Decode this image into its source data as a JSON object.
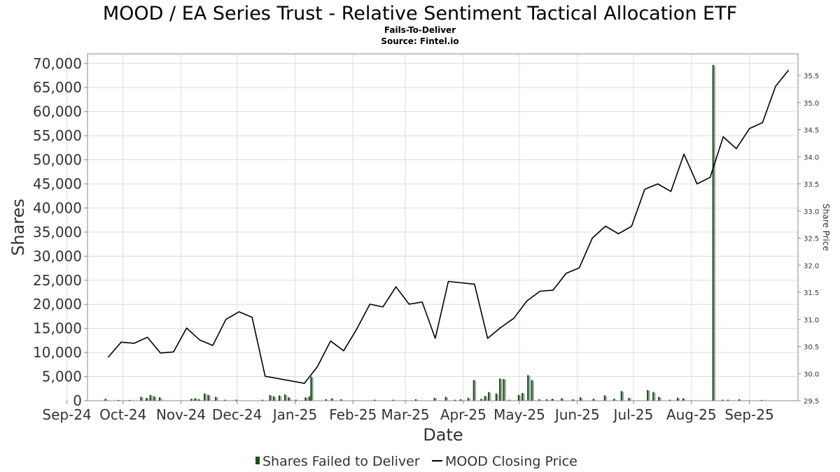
{
  "chart_data": {
    "type": "bar",
    "title": "MOOD / EA Series Trust - Relative Sentiment Tactical Allocation ETF",
    "subtitle": "Fails-To-Deliver",
    "source": "Source: Fintel.io",
    "xlabel": "Date",
    "ylabel": "Shares",
    "y2label": "Share Price",
    "ylim": [
      0,
      72000
    ],
    "y2lim": [
      29.5,
      35.9
    ],
    "grid": true,
    "legend_position": "bottom-center",
    "x_range": [
      "2024-09-12",
      "2025-09-27"
    ],
    "x_ticks": [
      {
        "date": "2024-09-01",
        "label": "Sep-24"
      },
      {
        "date": "2024-10-01",
        "label": "Oct-24"
      },
      {
        "date": "2024-11-01",
        "label": "Nov-24"
      },
      {
        "date": "2024-12-01",
        "label": "Dec-24"
      },
      {
        "date": "2025-01-01",
        "label": "Jan-25"
      },
      {
        "date": "2025-02-01",
        "label": "Feb-25"
      },
      {
        "date": "2025-03-01",
        "label": "Mar-25"
      },
      {
        "date": "2025-04-01",
        "label": "Apr-25"
      },
      {
        "date": "2025-05-01",
        "label": "May-25"
      },
      {
        "date": "2025-06-01",
        "label": "Jun-25"
      },
      {
        "date": "2025-07-01",
        "label": "Jul-25"
      },
      {
        "date": "2025-08-01",
        "label": "Aug-25"
      },
      {
        "date": "2025-09-01",
        "label": "Sep-25"
      }
    ],
    "y_ticks": [
      {
        "value": 0,
        "label": "0"
      },
      {
        "value": 5000,
        "label": "5,000"
      },
      {
        "value": 10000,
        "label": "10,000"
      },
      {
        "value": 15000,
        "label": "15,000"
      },
      {
        "value": 20000,
        "label": "20,000"
      },
      {
        "value": 25000,
        "label": "25,000"
      },
      {
        "value": 30000,
        "label": "30,000"
      },
      {
        "value": 35000,
        "label": "35,000"
      },
      {
        "value": 40000,
        "label": "40,000"
      },
      {
        "value": 45000,
        "label": "45,000"
      },
      {
        "value": 50000,
        "label": "50,000"
      },
      {
        "value": 55000,
        "label": "55,000"
      },
      {
        "value": 60000,
        "label": "60,000"
      },
      {
        "value": 65000,
        "label": "65,000"
      },
      {
        "value": 70000,
        "label": "70,000"
      }
    ],
    "y2_ticks": [
      {
        "value": 29.5,
        "label": "29.5"
      },
      {
        "value": 30.0,
        "label": "30.0"
      },
      {
        "value": 30.5,
        "label": "30.5"
      },
      {
        "value": 31.0,
        "label": "31.0"
      },
      {
        "value": 31.5,
        "label": "31.5"
      },
      {
        "value": 32.0,
        "label": "32.0"
      },
      {
        "value": 32.5,
        "label": "32.5"
      },
      {
        "value": 33.0,
        "label": "33.0"
      },
      {
        "value": 33.5,
        "label": "33.5"
      },
      {
        "value": 34.0,
        "label": "34.0"
      },
      {
        "value": 34.5,
        "label": "34.5"
      },
      {
        "value": 35.0,
        "label": "35.0"
      },
      {
        "value": 35.5,
        "label": "35.5"
      }
    ],
    "series": [
      {
        "name": "Shares Failed to Deliver",
        "type": "bar",
        "color": "#1b4d1b",
        "values": [
          {
            "date": "2024-09-22",
            "value": 400
          },
          {
            "date": "2024-09-29",
            "value": 150
          },
          {
            "date": "2024-10-05",
            "value": 150
          },
          {
            "date": "2024-10-11",
            "value": 800
          },
          {
            "date": "2024-10-14",
            "value": 600
          },
          {
            "date": "2024-10-16",
            "value": 1200
          },
          {
            "date": "2024-10-18",
            "value": 900
          },
          {
            "date": "2024-10-21",
            "value": 700
          },
          {
            "date": "2024-11-07",
            "value": 400
          },
          {
            "date": "2024-11-09",
            "value": 500
          },
          {
            "date": "2024-11-11",
            "value": 300
          },
          {
            "date": "2024-11-14",
            "value": 1500
          },
          {
            "date": "2024-11-16",
            "value": 1200
          },
          {
            "date": "2024-11-20",
            "value": 800
          },
          {
            "date": "2024-11-25",
            "value": 200
          },
          {
            "date": "2024-12-01",
            "value": 200
          },
          {
            "date": "2024-12-15",
            "value": 200
          },
          {
            "date": "2024-12-19",
            "value": 1200
          },
          {
            "date": "2024-12-21",
            "value": 900
          },
          {
            "date": "2024-12-24",
            "value": 1100
          },
          {
            "date": "2024-12-27",
            "value": 1300
          },
          {
            "date": "2024-12-29",
            "value": 700
          },
          {
            "date": "2025-01-02",
            "value": 200
          },
          {
            "date": "2025-01-07",
            "value": 700
          },
          {
            "date": "2025-01-09",
            "value": 900
          },
          {
            "date": "2025-01-10",
            "value": 5000
          },
          {
            "date": "2025-01-18",
            "value": 300
          },
          {
            "date": "2025-01-21",
            "value": 500
          },
          {
            "date": "2025-01-26",
            "value": 300
          },
          {
            "date": "2025-02-13",
            "value": 200
          },
          {
            "date": "2025-02-23",
            "value": 200
          },
          {
            "date": "2025-03-07",
            "value": 300
          },
          {
            "date": "2025-03-17",
            "value": 600
          },
          {
            "date": "2025-03-23",
            "value": 800
          },
          {
            "date": "2025-03-28",
            "value": 200
          },
          {
            "date": "2025-03-31",
            "value": 300
          },
          {
            "date": "2025-04-04",
            "value": 600
          },
          {
            "date": "2025-04-07",
            "value": 4300
          },
          {
            "date": "2025-04-11",
            "value": 400
          },
          {
            "date": "2025-04-13",
            "value": 1000
          },
          {
            "date": "2025-04-15",
            "value": 1800
          },
          {
            "date": "2025-04-19",
            "value": 1500
          },
          {
            "date": "2025-04-21",
            "value": 4600
          },
          {
            "date": "2025-04-23",
            "value": 4500
          },
          {
            "date": "2025-04-26",
            "value": 200
          },
          {
            "date": "2025-05-01",
            "value": 1200
          },
          {
            "date": "2025-05-03",
            "value": 1600
          },
          {
            "date": "2025-05-06",
            "value": 5300
          },
          {
            "date": "2025-05-08",
            "value": 4300
          },
          {
            "date": "2025-05-12",
            "value": 300
          },
          {
            "date": "2025-05-16",
            "value": 300
          },
          {
            "date": "2025-05-19",
            "value": 400
          },
          {
            "date": "2025-05-24",
            "value": 500
          },
          {
            "date": "2025-05-30",
            "value": 300
          },
          {
            "date": "2025-06-03",
            "value": 700
          },
          {
            "date": "2025-06-10",
            "value": 400
          },
          {
            "date": "2025-06-16",
            "value": 1100
          },
          {
            "date": "2025-06-21",
            "value": 400
          },
          {
            "date": "2025-06-25",
            "value": 2000
          },
          {
            "date": "2025-06-29",
            "value": 600
          },
          {
            "date": "2025-07-09",
            "value": 2200
          },
          {
            "date": "2025-07-12",
            "value": 1800
          },
          {
            "date": "2025-07-15",
            "value": 800
          },
          {
            "date": "2025-07-21",
            "value": 200
          },
          {
            "date": "2025-07-25",
            "value": 600
          },
          {
            "date": "2025-07-28",
            "value": 500
          },
          {
            "date": "2025-08-13",
            "value": 69700
          },
          {
            "date": "2025-08-18",
            "value": 200
          },
          {
            "date": "2025-08-21",
            "value": 200
          },
          {
            "date": "2025-08-27",
            "value": 300
          },
          {
            "date": "2025-09-08",
            "value": 150
          }
        ]
      },
      {
        "name": "MOOD Closing Price",
        "type": "line",
        "color": "#000000",
        "values": [
          {
            "date": "2024-09-23",
            "value": 30.3
          },
          {
            "date": "2024-09-30",
            "value": 30.58
          },
          {
            "date": "2024-10-07",
            "value": 30.56
          },
          {
            "date": "2024-10-14",
            "value": 30.67
          },
          {
            "date": "2024-10-21",
            "value": 30.38
          },
          {
            "date": "2024-10-28",
            "value": 30.4
          },
          {
            "date": "2024-11-04",
            "value": 30.84
          },
          {
            "date": "2024-11-11",
            "value": 30.62
          },
          {
            "date": "2024-11-18",
            "value": 30.52
          },
          {
            "date": "2024-11-25",
            "value": 31.0
          },
          {
            "date": "2024-12-02",
            "value": 31.14
          },
          {
            "date": "2024-12-09",
            "value": 31.04
          },
          {
            "date": "2024-12-16",
            "value": 29.95
          },
          {
            "date": "2025-01-06",
            "value": 29.82
          },
          {
            "date": "2025-01-13",
            "value": 30.13
          },
          {
            "date": "2025-01-20",
            "value": 30.6
          },
          {
            "date": "2025-01-27",
            "value": 30.42
          },
          {
            "date": "2025-02-03",
            "value": 30.82
          },
          {
            "date": "2025-02-10",
            "value": 31.28
          },
          {
            "date": "2025-02-17",
            "value": 31.23
          },
          {
            "date": "2025-02-24",
            "value": 31.6
          },
          {
            "date": "2025-03-03",
            "value": 31.28
          },
          {
            "date": "2025-03-10",
            "value": 31.32
          },
          {
            "date": "2025-03-17",
            "value": 30.65
          },
          {
            "date": "2025-03-24",
            "value": 31.7
          },
          {
            "date": "2025-04-07",
            "value": 31.65
          },
          {
            "date": "2025-04-14",
            "value": 30.65
          },
          {
            "date": "2025-04-21",
            "value": 30.85
          },
          {
            "date": "2025-04-28",
            "value": 31.02
          },
          {
            "date": "2025-05-05",
            "value": 31.34
          },
          {
            "date": "2025-05-12",
            "value": 31.52
          },
          {
            "date": "2025-05-19",
            "value": 31.54
          },
          {
            "date": "2025-05-26",
            "value": 31.85
          },
          {
            "date": "2025-06-02",
            "value": 31.95
          },
          {
            "date": "2025-06-09",
            "value": 32.5
          },
          {
            "date": "2025-06-16",
            "value": 32.72
          },
          {
            "date": "2025-06-23",
            "value": 32.58
          },
          {
            "date": "2025-06-30",
            "value": 32.72
          },
          {
            "date": "2025-07-07",
            "value": 33.4
          },
          {
            "date": "2025-07-14",
            "value": 33.5
          },
          {
            "date": "2025-07-21",
            "value": 33.36
          },
          {
            "date": "2025-07-28",
            "value": 34.05
          },
          {
            "date": "2025-08-04",
            "value": 33.5
          },
          {
            "date": "2025-08-11",
            "value": 33.62
          },
          {
            "date": "2025-08-18",
            "value": 34.37
          },
          {
            "date": "2025-08-25",
            "value": 34.15
          },
          {
            "date": "2025-09-01",
            "value": 34.52
          },
          {
            "date": "2025-09-08",
            "value": 34.63
          },
          {
            "date": "2025-09-15",
            "value": 35.3
          },
          {
            "date": "2025-09-22",
            "value": 35.6
          }
        ]
      }
    ]
  }
}
